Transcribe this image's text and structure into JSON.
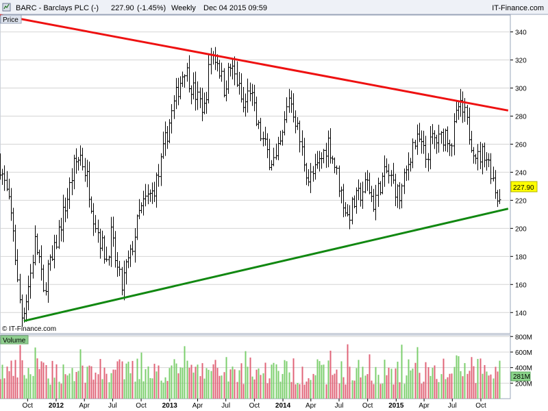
{
  "header": {
    "title": "BARC - Barclays PLC (-)",
    "price": "227.90",
    "change": "(-1.45%)",
    "period": "Weekly",
    "timestamp": "Dec 04 2015 09:59",
    "brand": "IT-Finance.com"
  },
  "price_panel": {
    "label": "Price",
    "copyright": "© IT-Finance.com",
    "current_badge": "227.90",
    "badge_color": "#ffff00"
  },
  "volume_panel": {
    "label": "Volume",
    "current_badge": "281M",
    "badge_color": "#8bd58b"
  },
  "colors": {
    "resistance": "#ee1111",
    "support": "#118811",
    "bars": "#000000",
    "volume_up": "#7ccf6e",
    "volume_down": "#e06478",
    "grid": "#d4d4d4"
  },
  "chart_data": {
    "type": "ohlc",
    "symbol": "BARC",
    "interval": "weekly",
    "y_axis": {
      "ticks": [
        140,
        160,
        180,
        200,
        220,
        240,
        260,
        280,
        300,
        320,
        340
      ],
      "range": [
        125,
        352
      ]
    },
    "volume_axis": {
      "ticks": [
        "200M",
        "400M",
        "600M",
        "800M"
      ],
      "range_millions": [
        0,
        820
      ]
    },
    "x_axis": {
      "labels": [
        {
          "text": "Oct",
          "date": "2011-10-01",
          "bold": false
        },
        {
          "text": "2012",
          "date": "2012-01-01",
          "bold": true
        },
        {
          "text": "Apr",
          "date": "2012-04-01",
          "bold": false
        },
        {
          "text": "Jul",
          "date": "2012-07-01",
          "bold": false
        },
        {
          "text": "Oct",
          "date": "2012-10-01",
          "bold": false
        },
        {
          "text": "2013",
          "date": "2013-01-01",
          "bold": true
        },
        {
          "text": "Apr",
          "date": "2013-04-01",
          "bold": false
        },
        {
          "text": "Jul",
          "date": "2013-07-01",
          "bold": false
        },
        {
          "text": "Oct",
          "date": "2013-10-01",
          "bold": false
        },
        {
          "text": "2014",
          "date": "2014-01-01",
          "bold": true
        },
        {
          "text": "Apr",
          "date": "2014-04-01",
          "bold": false
        },
        {
          "text": "Jul",
          "date": "2014-07-01",
          "bold": false
        },
        {
          "text": "Oct",
          "date": "2014-10-01",
          "bold": false
        },
        {
          "text": "2015",
          "date": "2015-01-01",
          "bold": true
        },
        {
          "text": "Apr",
          "date": "2015-04-01",
          "bold": false
        },
        {
          "text": "Jul",
          "date": "2015-07-01",
          "bold": false
        },
        {
          "text": "Oct",
          "date": "2015-10-01",
          "bold": false
        }
      ]
    },
    "price_path": [
      [
        "2011-07-04",
        245
      ],
      [
        "2011-07-25",
        225
      ],
      [
        "2011-08-15",
        200
      ],
      [
        "2011-08-29",
        160
      ],
      [
        "2011-09-12",
        138
      ],
      [
        "2011-09-26",
        150
      ],
      [
        "2011-10-10",
        168
      ],
      [
        "2011-10-24",
        190
      ],
      [
        "2011-11-07",
        178
      ],
      [
        "2011-11-21",
        152
      ],
      [
        "2011-12-05",
        172
      ],
      [
        "2011-12-19",
        176
      ],
      [
        "2012-01-09",
        198
      ],
      [
        "2012-02-06",
        222
      ],
      [
        "2012-02-27",
        244
      ],
      [
        "2012-03-19",
        252
      ],
      [
        "2012-04-09",
        236
      ],
      [
        "2012-04-30",
        210
      ],
      [
        "2012-05-21",
        192
      ],
      [
        "2012-06-11",
        178
      ],
      [
        "2012-06-25",
        195
      ],
      [
        "2012-07-16",
        170
      ],
      [
        "2012-07-30",
        158
      ],
      [
        "2012-08-13",
        172
      ],
      [
        "2012-08-27",
        180
      ],
      [
        "2012-09-10",
        196
      ],
      [
        "2012-09-24",
        210
      ],
      [
        "2012-10-15",
        220
      ],
      [
        "2012-11-05",
        225
      ],
      [
        "2012-11-26",
        238
      ],
      [
        "2012-12-17",
        262
      ],
      [
        "2013-01-07",
        282
      ],
      [
        "2013-01-28",
        300
      ],
      [
        "2013-02-18",
        315
      ],
      [
        "2013-03-11",
        302
      ],
      [
        "2013-04-01",
        292
      ],
      [
        "2013-04-22",
        285
      ],
      [
        "2013-05-13",
        325
      ],
      [
        "2013-06-03",
        320
      ],
      [
        "2013-06-24",
        300
      ],
      [
        "2013-07-15",
        315
      ],
      [
        "2013-08-05",
        305
      ],
      [
        "2013-08-26",
        285
      ],
      [
        "2013-09-16",
        300
      ],
      [
        "2013-10-07",
        275
      ],
      [
        "2013-10-28",
        262
      ],
      [
        "2013-11-18",
        250
      ],
      [
        "2013-12-09",
        248
      ],
      [
        "2013-12-30",
        265
      ],
      [
        "2014-01-20",
        295
      ],
      [
        "2014-02-10",
        278
      ],
      [
        "2014-03-03",
        255
      ],
      [
        "2014-03-24",
        235
      ],
      [
        "2014-04-14",
        240
      ],
      [
        "2014-05-05",
        250
      ],
      [
        "2014-05-26",
        262
      ],
      [
        "2014-06-16",
        245
      ],
      [
        "2014-07-07",
        225
      ],
      [
        "2014-07-28",
        208
      ],
      [
        "2014-08-18",
        218
      ],
      [
        "2014-09-08",
        225
      ],
      [
        "2014-09-29",
        232
      ],
      [
        "2014-10-20",
        218
      ],
      [
        "2014-11-10",
        232
      ],
      [
        "2014-12-01",
        240
      ],
      [
        "2014-12-22",
        232
      ],
      [
        "2015-01-12",
        222
      ],
      [
        "2015-02-02",
        240
      ],
      [
        "2015-02-23",
        260
      ],
      [
        "2015-03-16",
        262
      ],
      [
        "2015-04-06",
        250
      ],
      [
        "2015-04-27",
        264
      ],
      [
        "2015-05-18",
        262
      ],
      [
        "2015-06-08",
        268
      ],
      [
        "2015-06-29",
        262
      ],
      [
        "2015-07-20",
        287
      ],
      [
        "2015-08-10",
        280
      ],
      [
        "2015-08-31",
        262
      ],
      [
        "2015-09-21",
        250
      ],
      [
        "2015-10-12",
        255
      ],
      [
        "2015-11-02",
        242
      ],
      [
        "2015-11-23",
        222
      ],
      [
        "2015-12-04",
        228
      ]
    ],
    "trendlines": [
      {
        "role": "resistance",
        "start": [
          "2011-07-04",
          352
        ],
        "end": [
          "2015-12-28",
          284
        ]
      },
      {
        "role": "support",
        "start": [
          "2011-09-19",
          134
        ],
        "end": [
          "2015-12-28",
          214
        ]
      }
    ],
    "last_price": 227.9,
    "last_change_pct": -1.45,
    "last_volume_millions": 281
  }
}
